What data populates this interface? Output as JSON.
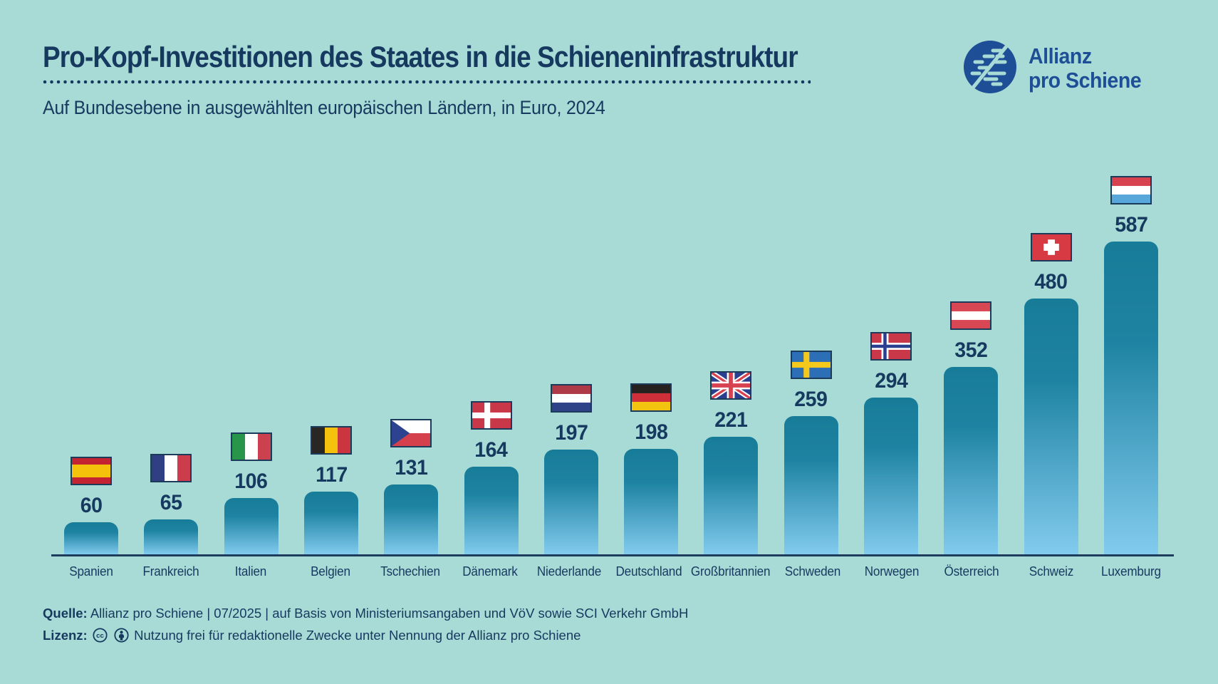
{
  "page": {
    "background_color": "#A9DBD6",
    "text_color": "#16395F"
  },
  "header": {
    "title": "Pro-Kopf-Investitionen des Staates in die Schieneninfrastruktur",
    "subtitle": "Auf Bundesebene in ausgewählten europäischen Ländern, in Euro, 2024"
  },
  "logo": {
    "icon": "allianz-pro-schiene-logo",
    "line1": "Allianz",
    "line2": "pro Schiene",
    "color": "#1E4F96"
  },
  "chart_data": {
    "type": "bar",
    "title": "Pro-Kopf-Investitionen des Staates in die Schieneninfrastruktur",
    "subtitle": "Auf Bundesebene in ausgewählten europäischen Ländern, in Euro, 2024",
    "unit": "Euro pro Kopf",
    "year": "2024",
    "categories": [
      "Spanien",
      "Frankreich",
      "Italien",
      "Belgien",
      "Tschechien",
      "Dänemark",
      "Niederlande",
      "Deutschland",
      "Großbritannien",
      "Schweden",
      "Norwegen",
      "Österreich",
      "Schweiz",
      "Luxemburg"
    ],
    "values": [
      60,
      65,
      106,
      117,
      131,
      164,
      197,
      198,
      221,
      259,
      294,
      352,
      480,
      587
    ],
    "flags": [
      "flag-spain-icon",
      "flag-france-icon",
      "flag-italy-icon",
      "flag-belgium-icon",
      "flag-czechia-icon",
      "flag-denmark-icon",
      "flag-netherlands-icon",
      "flag-germany-icon",
      "flag-uk-icon",
      "flag-sweden-icon",
      "flag-norway-icon",
      "flag-austria-icon",
      "flag-switzerland-icon",
      "flag-luxembourg-icon"
    ],
    "bar_color_top": "#177C98",
    "bar_color_bottom": "#82CBEE",
    "value_label_color": "#16395F",
    "ylim": [
      0,
      600
    ],
    "grid": false,
    "legend": false,
    "data_labels": true
  },
  "footer": {
    "source_label": "Quelle:",
    "source_text": "Allianz pro Schiene | 07/2025 | auf Basis von Ministeriumsangaben und VöV sowie SCI Verkehr GmbH",
    "license_label": "Lizenz:",
    "license_icons": [
      "cc-icon",
      "cc-by-icon"
    ],
    "license_text": "Nutzung frei für redaktionelle Zwecke unter Nennung der Allianz pro Schiene"
  }
}
